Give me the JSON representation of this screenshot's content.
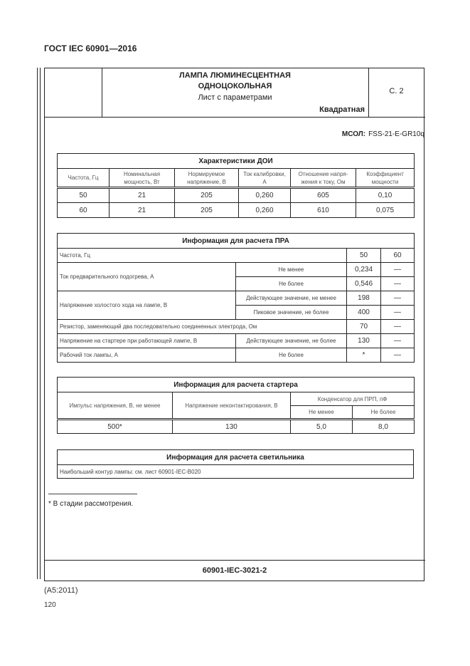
{
  "standard": "ГОСТ IEC 60901—2016",
  "header": {
    "title_line1": "ЛАМПА ЛЮМИНЕСЦЕНТНАЯ",
    "title_line2": "ОДНОЦОКОЛЬНАЯ",
    "subtitle": "Лист с параметрами",
    "shape": "Квадратная",
    "page_ref": "С. 2"
  },
  "mcol": {
    "label": "МСОЛ:",
    "value": "FSS-21-E-GR10q"
  },
  "table_doi": {
    "title": "Характеристики ДОИ",
    "columns": [
      "Частота, Гц",
      "Номинальная мощность, Вт",
      "Нормируемое напряжение, В",
      "Ток калибровки, А",
      "Отношение напря-жения к току, Ом",
      "Коэффициент мощности"
    ],
    "rows": [
      [
        "50",
        "21",
        "205",
        "0,260",
        "605",
        "0,10"
      ],
      [
        "60",
        "21",
        "205",
        "0,260",
        "610",
        "0,075"
      ]
    ]
  },
  "table_pra": {
    "title": "Информация для расчета ПРА",
    "freq_label": "Частота, Гц",
    "freq_50": "50",
    "freq_60": "60",
    "preheat_label": "Ток предварительного подогрева, А",
    "preheat_min_label": "Не менее",
    "preheat_min": "0,234",
    "preheat_min_60": "—",
    "preheat_max_label": "Не более",
    "preheat_max": "0,546",
    "preheat_max_60": "—",
    "ocv_label": "Напряжение холостого хода на лампе, В",
    "ocv_rms_label": "Действующее значение, не менее",
    "ocv_rms": "198",
    "ocv_rms_60": "—",
    "ocv_peak_label": "Пиковое значение, не более",
    "ocv_peak": "400",
    "ocv_peak_60": "—",
    "resistor_label": "Резистор, заменяющий два последовательно соединенных электрода, Ом",
    "resistor": "70",
    "resistor_60": "—",
    "starter_v_label": "Напряжение на стартере при работающей лампе, В",
    "starter_v_cond": "Действующее значение, не более",
    "starter_v": "130",
    "starter_v_60": "—",
    "current_label": "Рабочий ток лампы, А",
    "current_cond": "Не более",
    "current": "*",
    "current_60": "—"
  },
  "table_starter": {
    "title": "Информация для расчета стартера",
    "col_pulse": "Импульс напряжения, В, не менее",
    "col_nonact": "Напряжение неконтактирования, В",
    "col_cap": "Конденсатор для ПРП, пФ",
    "col_cap_min": "Не менее",
    "col_cap_max": "Не более",
    "values": [
      "500*",
      "130",
      "5,0",
      "8,0"
    ]
  },
  "table_luminaire": {
    "title": "Информация для расчета светильника",
    "text": "Наибольший контур лампы: см. лист 60901-IEC-B020"
  },
  "footnote": "* В стадии рассмотрения.",
  "sheet_code": "60901-IEC-3021-2",
  "amendment": "(A5:2011)",
  "page_number": "120"
}
